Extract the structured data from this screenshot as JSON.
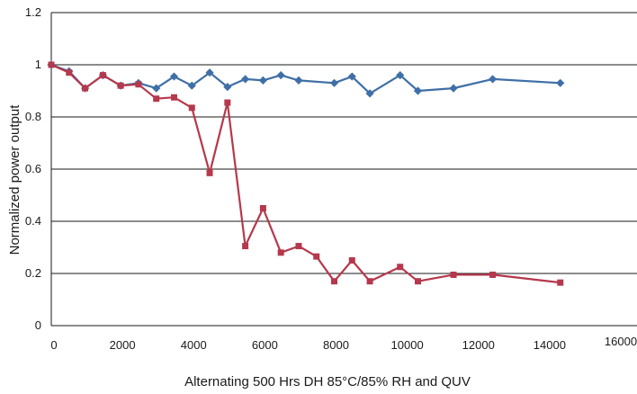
{
  "chart_data": {
    "type": "line",
    "title": "",
    "xlabel": "Alternating 500 Hrs DH 85°C/85% RH and QUV",
    "ylabel": "Normalized power output",
    "xlim": [
      0,
      16000
    ],
    "ylim": [
      0,
      1.2
    ],
    "x_ticks": [
      0,
      2000,
      4000,
      6000,
      8000,
      10000,
      12000,
      14000,
      16000
    ],
    "y_ticks": [
      0,
      0.2,
      0.4,
      0.6,
      0.8,
      1,
      1.2
    ],
    "x_tick_labels": [
      "0",
      "2000",
      "4000",
      "6000",
      "8000",
      "10000",
      "12000",
      "14000",
      "16000"
    ],
    "y_tick_labels": [
      "0",
      "0.2",
      "0.4",
      "0.6",
      "0.8",
      "1",
      "1.2"
    ],
    "grid": "horizontal",
    "legend": "none",
    "series": [
      {
        "color": "#3f6fa6",
        "marker": "diamond",
        "points": [
          [
            0,
            1.0
          ],
          [
            500,
            0.975
          ],
          [
            950,
            0.91
          ],
          [
            1450,
            0.96
          ],
          [
            1950,
            0.92
          ],
          [
            2450,
            0.93
          ],
          [
            2950,
            0.91
          ],
          [
            3450,
            0.955
          ],
          [
            3950,
            0.92
          ],
          [
            4450,
            0.97
          ],
          [
            4950,
            0.915
          ],
          [
            5450,
            0.945
          ],
          [
            5950,
            0.94
          ],
          [
            6450,
            0.96
          ],
          [
            6950,
            0.94
          ],
          [
            7950,
            0.93
          ],
          [
            8450,
            0.955
          ],
          [
            8950,
            0.89
          ],
          [
            9800,
            0.96
          ],
          [
            10300,
            0.9
          ],
          [
            11300,
            0.91
          ],
          [
            12400,
            0.945
          ],
          [
            14300,
            0.93
          ]
        ]
      },
      {
        "color": "#b5384c",
        "marker": "square",
        "points": [
          [
            0,
            1.0
          ],
          [
            500,
            0.97
          ],
          [
            950,
            0.91
          ],
          [
            1450,
            0.96
          ],
          [
            1950,
            0.92
          ],
          [
            2450,
            0.925
          ],
          [
            2950,
            0.87
          ],
          [
            3450,
            0.875
          ],
          [
            3950,
            0.835
          ],
          [
            4450,
            0.585
          ],
          [
            4950,
            0.855
          ],
          [
            5450,
            0.305
          ],
          [
            5950,
            0.45
          ],
          [
            6450,
            0.28
          ],
          [
            6950,
            0.305
          ],
          [
            7450,
            0.265
          ],
          [
            7950,
            0.17
          ],
          [
            8450,
            0.25
          ],
          [
            8950,
            0.17
          ],
          [
            9800,
            0.225
          ],
          [
            10300,
            0.17
          ],
          [
            11300,
            0.195
          ],
          [
            12400,
            0.195
          ],
          [
            14300,
            0.165
          ]
        ]
      }
    ]
  }
}
